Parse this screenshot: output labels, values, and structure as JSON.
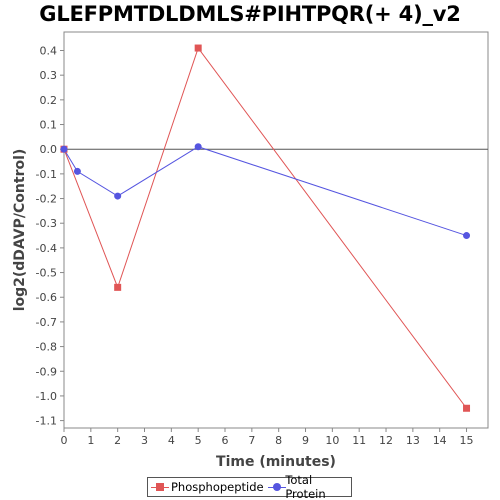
{
  "colors": {
    "phospho": "#e05555",
    "protein": "#5555e0",
    "axis": "#888888",
    "zero_line": "#555555",
    "plot_bg": "#ffffff"
  },
  "chart_data": {
    "type": "line",
    "title": "GLEFPMTDLDMLS#PIHTPQR(+ 4)_v2",
    "xlabel": "Time (minutes)",
    "ylabel": "log2(dDAVP/Control)",
    "xlim": [
      0,
      15.8
    ],
    "ylim": [
      -1.13,
      0.475
    ],
    "x_ticks": [
      0,
      1,
      2,
      3,
      4,
      5,
      6,
      7,
      8,
      9,
      10,
      11,
      12,
      13,
      14,
      15
    ],
    "y_ticks": [
      0.4,
      0.3,
      0.2,
      0.1,
      0.0,
      -0.1,
      -0.2,
      -0.3,
      -0.4,
      -0.5,
      -0.6,
      -0.7,
      -0.8,
      -0.9,
      -1.0,
      -1.1
    ],
    "grid": false,
    "legend_position": "bottom",
    "series": [
      {
        "name": "Phosphopeptide",
        "marker": "square",
        "x": [
          0,
          2,
          5,
          15
        ],
        "y": [
          0.0,
          -0.56,
          0.41,
          -1.05
        ]
      },
      {
        "name": "Total Protein",
        "marker": "circle",
        "x": [
          0,
          0.5,
          2,
          5,
          15
        ],
        "y": [
          0.0,
          -0.09,
          -0.19,
          0.01,
          -0.35
        ]
      }
    ]
  }
}
